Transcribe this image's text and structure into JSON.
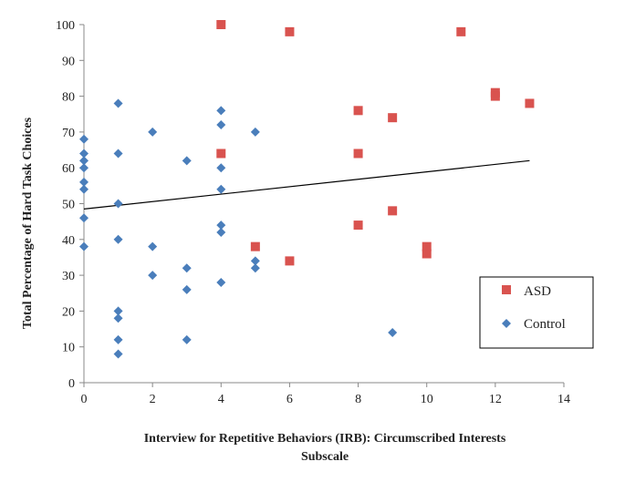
{
  "chart_data": {
    "type": "scatter",
    "title": "",
    "xlabel_lines": [
      "Interview for Repetitive Behaviors (IRB): Circumscribed Interests",
      "Subscale"
    ],
    "ylabel": "Total Percentage of Hard Task Choices",
    "xlim": [
      0,
      14
    ],
    "ylim": [
      0,
      100
    ],
    "x_ticks": [
      0,
      2,
      4,
      6,
      8,
      10,
      12,
      14
    ],
    "y_ticks": [
      0,
      10,
      20,
      30,
      40,
      50,
      60,
      70,
      80,
      90,
      100
    ],
    "grid": false,
    "legend_placement": "bottom-right",
    "series": [
      {
        "name": "ASD",
        "marker": "square",
        "color": "#d9534f",
        "points": [
          [
            4,
            100
          ],
          [
            6,
            98
          ],
          [
            11,
            98
          ],
          [
            4,
            64
          ],
          [
            5,
            38
          ],
          [
            6,
            34
          ],
          [
            8,
            76
          ],
          [
            8,
            64
          ],
          [
            8,
            44
          ],
          [
            9,
            74
          ],
          [
            9,
            48
          ],
          [
            10,
            38
          ],
          [
            10,
            36
          ],
          [
            12,
            81
          ],
          [
            12,
            80
          ],
          [
            13,
            78
          ]
        ]
      },
      {
        "name": "Control",
        "marker": "diamond",
        "color": "#4a7ebb",
        "points": [
          [
            0,
            68
          ],
          [
            0,
            64
          ],
          [
            0,
            62
          ],
          [
            0,
            60
          ],
          [
            0,
            56
          ],
          [
            0,
            54
          ],
          [
            0,
            46
          ],
          [
            0,
            38
          ],
          [
            1,
            78
          ],
          [
            1,
            64
          ],
          [
            1,
            50
          ],
          [
            1,
            40
          ],
          [
            1,
            20
          ],
          [
            1,
            18
          ],
          [
            1,
            12
          ],
          [
            1,
            8
          ],
          [
            2,
            70
          ],
          [
            2,
            38
          ],
          [
            2,
            30
          ],
          [
            3,
            62
          ],
          [
            3,
            32
          ],
          [
            3,
            26
          ],
          [
            3,
            12
          ],
          [
            4,
            76
          ],
          [
            4,
            72
          ],
          [
            4,
            60
          ],
          [
            4,
            54
          ],
          [
            4,
            44
          ],
          [
            4,
            42
          ],
          [
            4,
            28
          ],
          [
            5,
            70
          ],
          [
            5,
            34
          ],
          [
            5,
            32
          ],
          [
            9,
            14
          ]
        ]
      }
    ],
    "trendline": {
      "color": "#000000",
      "from": [
        0,
        48.5
      ],
      "to": [
        13,
        62
      ]
    }
  }
}
